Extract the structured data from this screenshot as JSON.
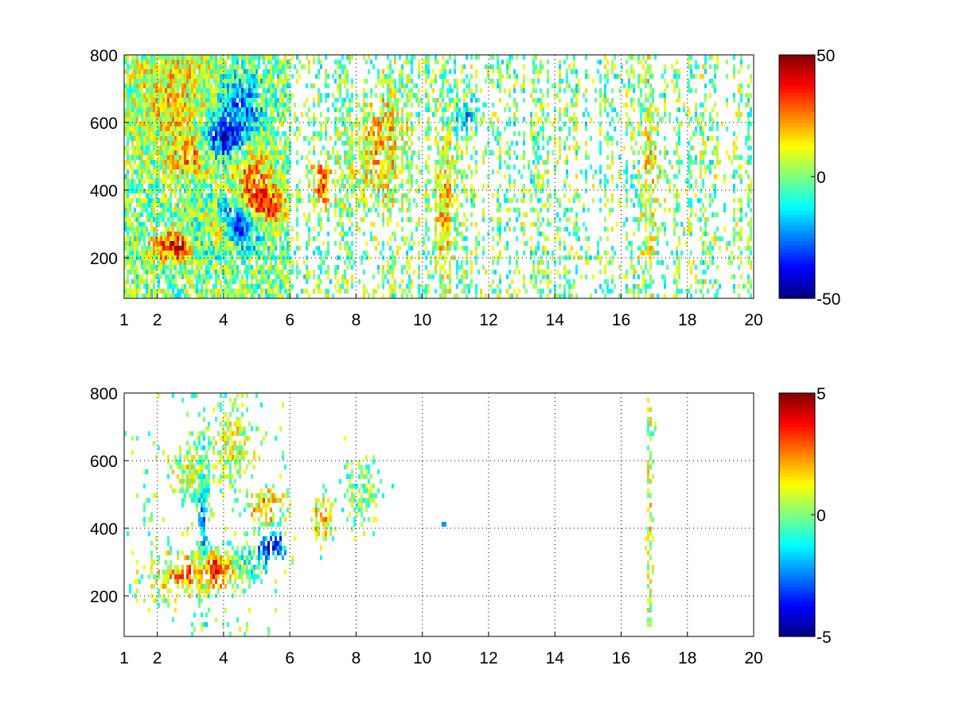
{
  "chart_data": [
    {
      "type": "heatmap",
      "x_ticks": [
        1,
        2,
        4,
        6,
        8,
        10,
        12,
        14,
        16,
        18,
        20
      ],
      "y_ticks": [
        200,
        400,
        600,
        800
      ],
      "xlim": [
        1,
        20
      ],
      "ylim": [
        80,
        800
      ],
      "grid": true,
      "colormap": "jet",
      "colorbar": {
        "ticks": [
          "50",
          "0",
          "-50"
        ],
        "clim": [
          -50,
          50
        ],
        "placement": "right"
      },
      "sparsity": "dense",
      "features": [
        {
          "x": 2.7,
          "y": 235,
          "value": 42,
          "sx": 0.55,
          "sy": 30
        },
        {
          "x": 3.3,
          "y": 260,
          "value": -45,
          "sx": 0.35,
          "sy": 40
        },
        {
          "x": 3.7,
          "y": 285,
          "value": 45,
          "sx": 0.45,
          "sy": 35
        },
        {
          "x": 4.4,
          "y": 300,
          "value": -45,
          "sx": 0.5,
          "sy": 45
        },
        {
          "x": 5.2,
          "y": 350,
          "value": 35,
          "sx": 0.45,
          "sy": 35
        },
        {
          "x": 4.9,
          "y": 430,
          "value": 25,
          "sx": 0.4,
          "sy": 60
        },
        {
          "x": 4.0,
          "y": 550,
          "value": -35,
          "sx": 0.4,
          "sy": 40
        },
        {
          "x": 3.0,
          "y": 500,
          "value": 20,
          "sx": 0.45,
          "sy": 40
        },
        {
          "x": 4.5,
          "y": 650,
          "value": -25,
          "sx": 0.5,
          "sy": 60
        },
        {
          "x": 2.5,
          "y": 690,
          "value": 15,
          "sx": 0.8,
          "sy": 100
        },
        {
          "x": 7.0,
          "y": 420,
          "value": 25,
          "sx": 0.25,
          "sy": 50
        },
        {
          "x": 8.3,
          "y": 500,
          "value": 10,
          "sx": 0.5,
          "sy": 100
        },
        {
          "x": 9.0,
          "y": 550,
          "value": 12,
          "sx": 0.4,
          "sy": 120
        },
        {
          "x": 10.7,
          "y": 350,
          "value": 15,
          "sx": 0.2,
          "sy": 200
        },
        {
          "x": 11.3,
          "y": 620,
          "value": -15,
          "sx": 0.3,
          "sy": 40
        },
        {
          "x": 16.9,
          "y": 450,
          "value": 12,
          "sx": 0.15,
          "sy": 300
        }
      ]
    },
    {
      "type": "heatmap",
      "x_ticks": [
        1,
        2,
        4,
        6,
        8,
        10,
        12,
        14,
        16,
        18,
        20
      ],
      "y_ticks": [
        200,
        400,
        600,
        800
      ],
      "xlim": [
        1,
        20
      ],
      "ylim": [
        80,
        800
      ],
      "grid": true,
      "colormap": "jet",
      "colorbar": {
        "ticks": [
          "5",
          "0",
          "-5"
        ],
        "clim": [
          -5,
          5
        ],
        "placement": "right"
      },
      "sparsity": "sparse",
      "features": [
        {
          "x": 2.8,
          "y": 260,
          "value": 2,
          "sx": 0.7,
          "sy": 45
        },
        {
          "x": 3.8,
          "y": 280,
          "value": 3,
          "sx": 0.4,
          "sy": 35
        },
        {
          "x": 4.6,
          "y": 300,
          "value": -1,
          "sx": 0.5,
          "sy": 35
        },
        {
          "x": 5.5,
          "y": 350,
          "value": -4,
          "sx": 0.3,
          "sy": 30
        },
        {
          "x": 5.3,
          "y": 460,
          "value": 2,
          "sx": 0.35,
          "sy": 40
        },
        {
          "x": 3.4,
          "y": 400,
          "value": -2,
          "sx": 0.15,
          "sy": 150
        },
        {
          "x": 3.0,
          "y": 560,
          "value": 1,
          "sx": 0.4,
          "sy": 50
        },
        {
          "x": 4.3,
          "y": 650,
          "value": 1,
          "sx": 0.4,
          "sy": 80
        },
        {
          "x": 7.0,
          "y": 420,
          "value": 2,
          "sx": 0.2,
          "sy": 50
        },
        {
          "x": 8.2,
          "y": 500,
          "value": 0,
          "sx": 0.3,
          "sy": 60
        },
        {
          "x": 10.65,
          "y": 420,
          "value": -4,
          "sx": 0.05,
          "sy": 15
        },
        {
          "x": 16.9,
          "y": 450,
          "value": 1,
          "sx": 0.06,
          "sy": 300
        }
      ]
    }
  ]
}
